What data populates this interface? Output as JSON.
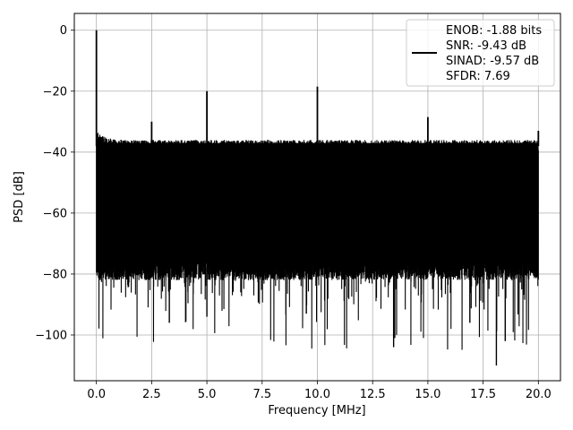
{
  "chart_data": {
    "type": "line",
    "xlabel": "Frequency [MHz]",
    "ylabel": "PSD [dB]",
    "xlim": [
      -1.0,
      21.0
    ],
    "ylim": [
      -115,
      5.5
    ],
    "xticks": [
      0.0,
      2.5,
      5.0,
      7.5,
      10.0,
      12.5,
      15.0,
      17.5,
      20.0
    ],
    "xtick_labels": [
      "0.0",
      "2.5",
      "5.0",
      "7.5",
      "10.0",
      "12.5",
      "15.0",
      "17.5",
      "20.0"
    ],
    "yticks": [
      0,
      -20,
      -40,
      -60,
      -80,
      -100
    ],
    "ytick_labels": [
      "0",
      "−20",
      "−40",
      "−60",
      "−80",
      "−100"
    ],
    "grid": true,
    "legend_position": "top-right",
    "legend_entries": [
      "ENOB: -1.88 bits",
      "SNR: -9.43 dB",
      "SINAD: -9.57 dB",
      "SFDR: 7.69"
    ],
    "series": [
      {
        "color": "#000000",
        "noise_floor": {
          "x": [
            0.0,
            20.0
          ],
          "upper_db": -38,
          "lower_db": -78,
          "min_db": -110
        },
        "spikes": [
          {
            "x": 0.0,
            "y": 0.0
          },
          {
            "x": 2.5,
            "y": -30
          },
          {
            "x": 5.0,
            "y": -20
          },
          {
            "x": 10.0,
            "y": -18.5
          },
          {
            "x": 15.0,
            "y": -28.5
          },
          {
            "x": 20.0,
            "y": -33
          }
        ]
      }
    ]
  }
}
